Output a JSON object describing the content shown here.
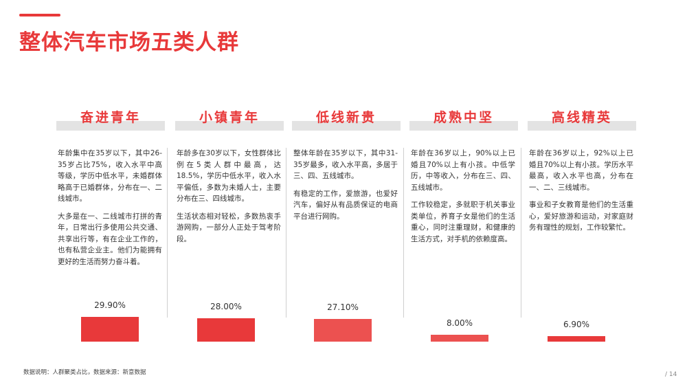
{
  "page": {
    "title": "整体汽车市场五类人群",
    "footnote": "数据说明：人群聚类占比，数据来源：新意数据",
    "page_number": "/ 14"
  },
  "colors": {
    "accent": "#e8393a",
    "header_band": "#e3e3e3",
    "divider": "#cfcfcf"
  },
  "segments": [
    {
      "name": "奋进青年",
      "desc": [
        "年龄集中在35岁以下，其中26-35岁占比75%，收入水平中高等级，学历中低水平，未婚群体略高于已婚群体，分布在一、二线城市。",
        "大多是在一、二线城市打拼的青年，日常出行多使用公共交通、共享出行等，有在企业工作的，也有私营企业主。他们为能拥有更好的生活而努力奋斗着。"
      ],
      "value_label": "29.90%"
    },
    {
      "name": "小镇青年",
      "desc": [
        "年龄多在30岁以下，女性群体比例在5类人群中最高，达18.5%，学历中低水平，收入水平偏低，多数为未婚人士，主要分布在三、四线城市。",
        "生活状态相对轻松，多数热衷手游网购，一部分人正处于驾考阶段。"
      ],
      "value_label": "28.00%"
    },
    {
      "name": "低线新贵",
      "desc": [
        "整体年龄在35岁以下，其中31-35岁最多，收入水平高，多居于三、四、五线城市。",
        "有稳定的工作，爱旅游，也爱好汽车，偏好从有品质保证的电商平台进行网购。"
      ],
      "value_label": "27.10%"
    },
    {
      "name": "成熟中坚",
      "desc": [
        "年龄在36岁以上，90%以上已婚且70%以上有小孩。中低学历，中等收入，分布在三、四、五线城市。",
        "工作较稳定，多就职于机关事业类单位，养育子女是他们的生活重心，同时注重理财，和健康的生活方式，对手机的依赖度高。"
      ],
      "value_label": "8.00%"
    },
    {
      "name": "高线精英",
      "desc": [
        "年龄在36岁以上，92%以上已婚且70%以上有小孩。学历水平最高，收入水平也高，分布在一、二、三线城市。",
        "事业和子女教育是他们的生活重心，爱好旅游和运动，对家庭财务有理性的规划，工作较繁忙。"
      ],
      "value_label": "6.90%"
    }
  ],
  "chart_data": {
    "type": "bar",
    "categories": [
      "奋进青年",
      "小镇青年",
      "低线新贵",
      "成熟中坚",
      "高线精英"
    ],
    "values": [
      29.9,
      28.0,
      27.1,
      8.0,
      6.9
    ],
    "unit": "%",
    "colors": [
      "#e8393a",
      "#e8393a",
      "#ec5150",
      "#ec5150",
      "#e8393a"
    ],
    "title": "",
    "xlabel": "",
    "ylabel": "",
    "grid": false,
    "legend": "none"
  }
}
